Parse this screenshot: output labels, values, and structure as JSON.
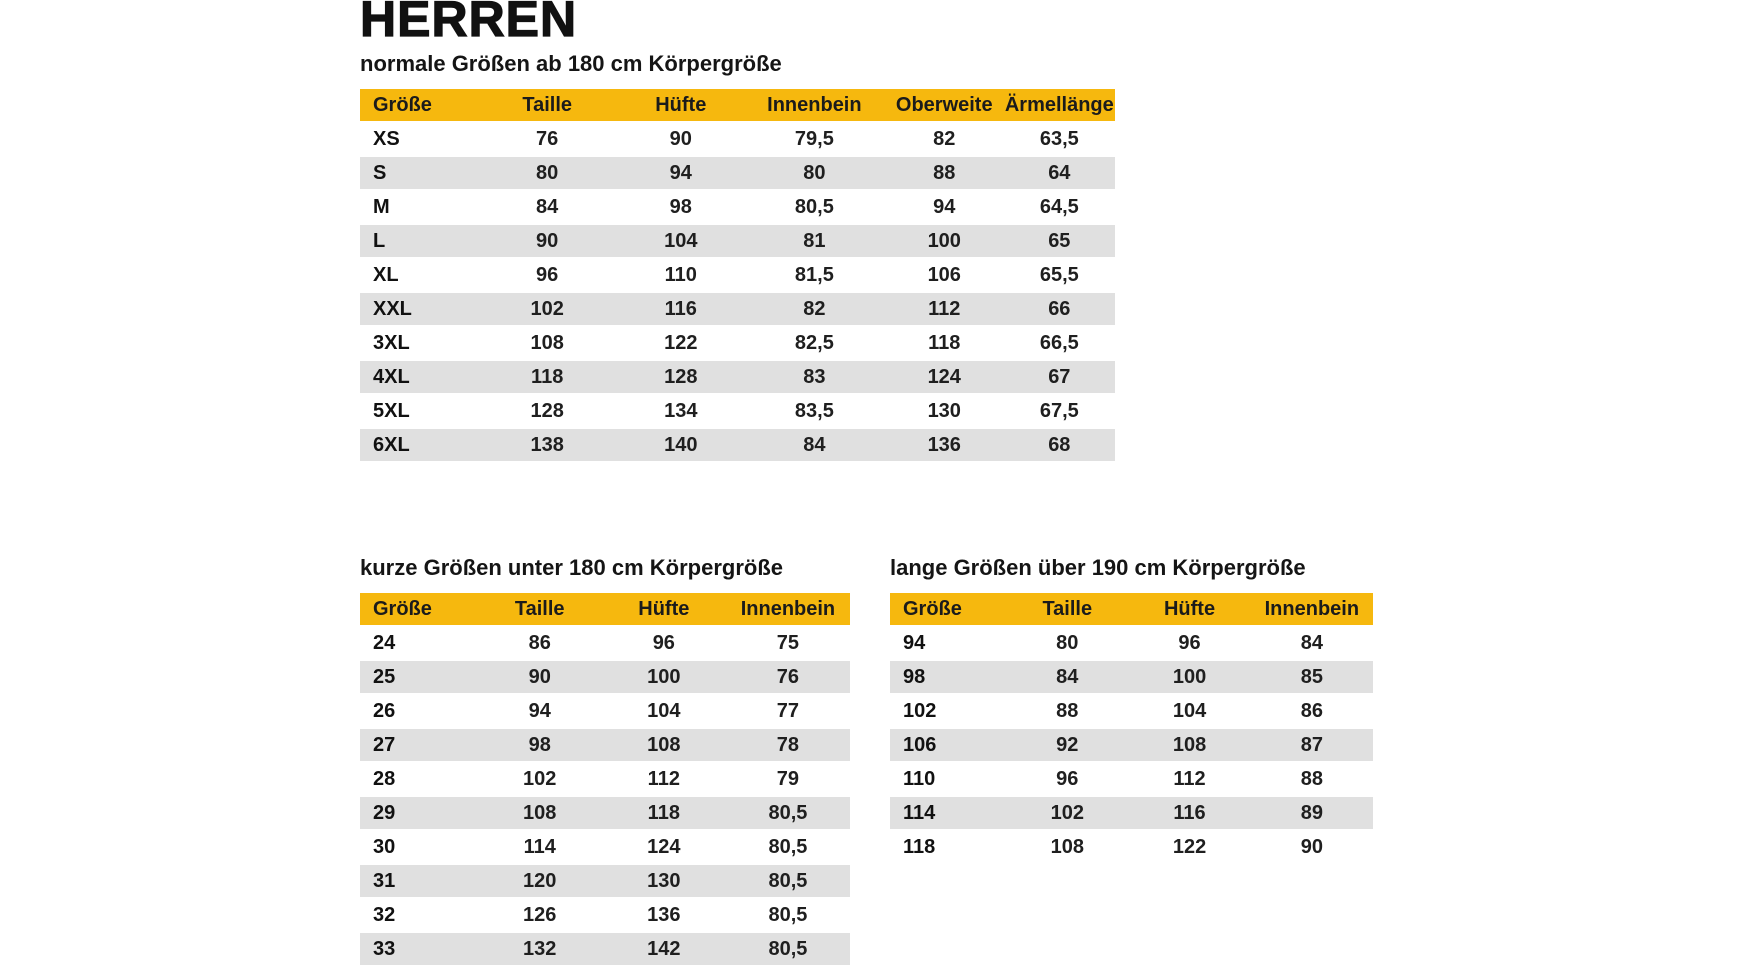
{
  "page": {
    "title": "HERREN",
    "accent_color": "#F6B80E",
    "stripe_color": "#E0E0E0",
    "text_color": "#1B1B1B"
  },
  "tables": {
    "normal": {
      "subtitle": "normale Größen ab 180 cm Körpergröße",
      "headers": [
        "Größe",
        "Taille",
        "Hüfte",
        "Innenbein",
        "Oberweite",
        "Ärmellänge"
      ],
      "rows": [
        [
          "XS",
          "76",
          "90",
          "79,5",
          "82",
          "63,5"
        ],
        [
          "S",
          "80",
          "94",
          "80",
          "88",
          "64"
        ],
        [
          "M",
          "84",
          "98",
          "80,5",
          "94",
          "64,5"
        ],
        [
          "L",
          "90",
          "104",
          "81",
          "100",
          "65"
        ],
        [
          "XL",
          "96",
          "110",
          "81,5",
          "106",
          "65,5"
        ],
        [
          "XXL",
          "102",
          "116",
          "82",
          "112",
          "66"
        ],
        [
          "3XL",
          "108",
          "122",
          "82,5",
          "118",
          "66,5"
        ],
        [
          "4XL",
          "118",
          "128",
          "83",
          "124",
          "67"
        ],
        [
          "5XL",
          "128",
          "134",
          "83,5",
          "130",
          "67,5"
        ],
        [
          "6XL",
          "138",
          "140",
          "84",
          "136",
          "68"
        ]
      ]
    },
    "short": {
      "subtitle": "kurze Größen unter 180 cm Körpergröße",
      "headers": [
        "Größe",
        "Taille",
        "Hüfte",
        "Innenbein"
      ],
      "rows": [
        [
          "24",
          "86",
          "96",
          "75"
        ],
        [
          "25",
          "90",
          "100",
          "76"
        ],
        [
          "26",
          "94",
          "104",
          "77"
        ],
        [
          "27",
          "98",
          "108",
          "78"
        ],
        [
          "28",
          "102",
          "112",
          "79"
        ],
        [
          "29",
          "108",
          "118",
          "80,5"
        ],
        [
          "30",
          "114",
          "124",
          "80,5"
        ],
        [
          "31",
          "120",
          "130",
          "80,5"
        ],
        [
          "32",
          "126",
          "136",
          "80,5"
        ],
        [
          "33",
          "132",
          "142",
          "80,5"
        ]
      ]
    },
    "long": {
      "subtitle": "lange Größen über 190 cm Körpergröße",
      "headers": [
        "Größe",
        "Taille",
        "Hüfte",
        "Innenbein"
      ],
      "rows": [
        [
          "94",
          "80",
          "96",
          "84"
        ],
        [
          "98",
          "84",
          "100",
          "85"
        ],
        [
          "102",
          "88",
          "104",
          "86"
        ],
        [
          "106",
          "92",
          "108",
          "87"
        ],
        [
          "110",
          "96",
          "112",
          "88"
        ],
        [
          "114",
          "102",
          "116",
          "89"
        ],
        [
          "118",
          "108",
          "122",
          "90"
        ]
      ]
    }
  }
}
